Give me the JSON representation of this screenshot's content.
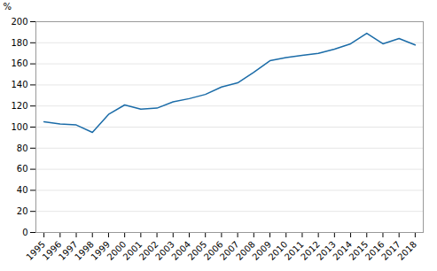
{
  "chart_data": {
    "type": "line",
    "x": [
      1995,
      1996,
      1997,
      1998,
      1999,
      2000,
      2001,
      2002,
      2003,
      2004,
      2005,
      2006,
      2007,
      2008,
      2009,
      2010,
      2011,
      2012,
      2013,
      2014,
      2015,
      2016,
      2017,
      2018
    ],
    "values": [
      105,
      103,
      102,
      95,
      112,
      121,
      117,
      118,
      124,
      127,
      131,
      138,
      142,
      152,
      163,
      166,
      168,
      170,
      174,
      179,
      189,
      179,
      184,
      178
    ],
    "color": "#1b6ca8",
    "ylabel": "%",
    "xlim": [
      1994.5,
      2018.5
    ],
    "xticks": [
      1995,
      1996,
      1997,
      1998,
      1999,
      2000,
      2001,
      2002,
      2003,
      2004,
      2005,
      2006,
      2007,
      2008,
      2009,
      2010,
      2011,
      2012,
      2013,
      2014,
      2015,
      2016,
      2017,
      2018
    ],
    "ylim": [
      0,
      200
    ],
    "yticks": [
      0,
      20,
      40,
      60,
      80,
      100,
      120,
      140,
      160,
      180,
      200
    ],
    "grid": "y"
  }
}
